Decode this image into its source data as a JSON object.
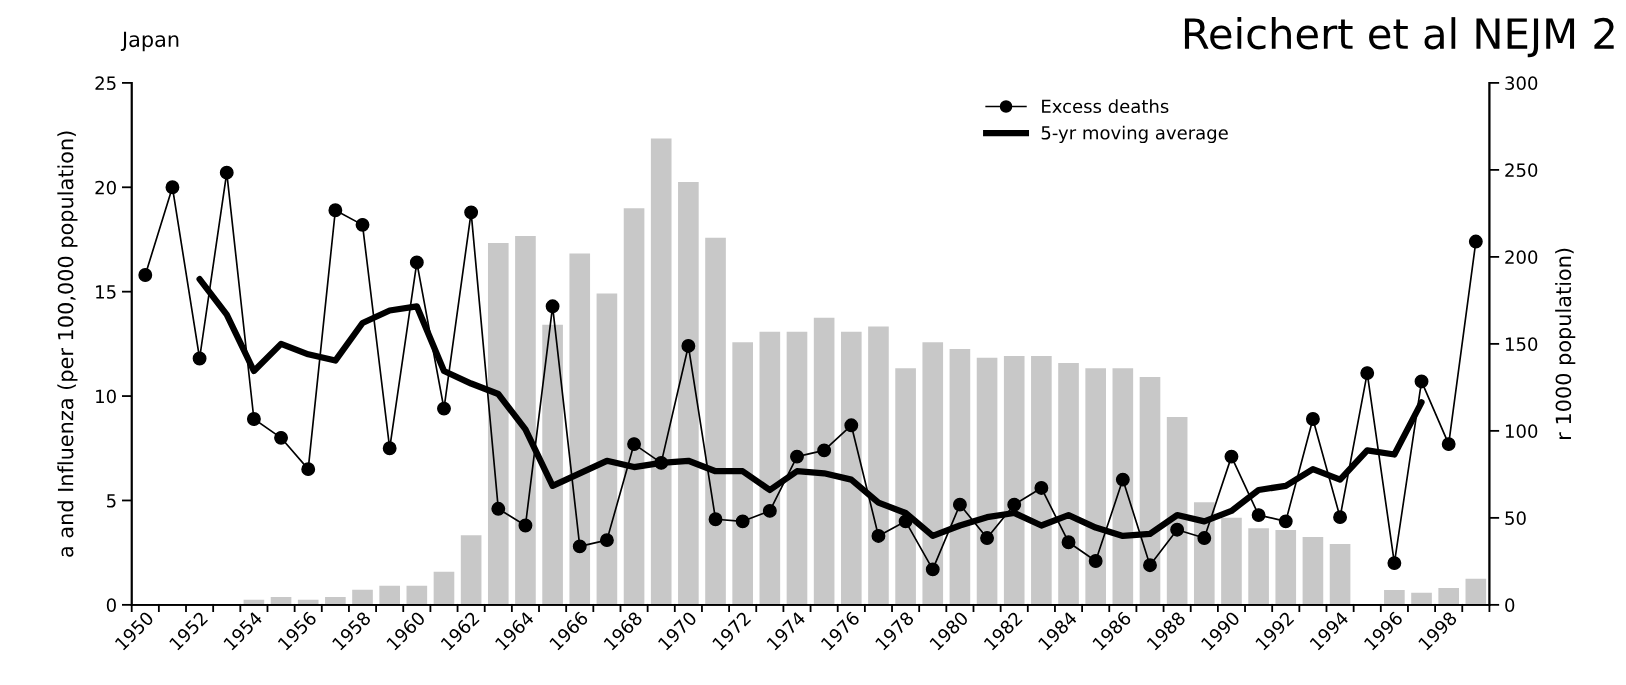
{
  "chart_data": {
    "type": "line",
    "title": "Reichert et al NEJM 2",
    "subtitle": "Japan",
    "ylabel": "a and Influenza (per 100,000 population)",
    "y2label": "r 1000 population)",
    "categories": [
      "1950",
      null,
      "1952",
      null,
      "1954",
      null,
      "1956",
      null,
      "1958",
      null,
      "1960",
      null,
      "1962",
      null,
      "1964",
      null,
      "1966",
      null,
      "1968",
      null,
      "1970",
      null,
      "1972",
      null,
      "1974",
      null,
      "1976",
      null,
      "1978",
      null,
      "1980",
      null,
      "1982",
      null,
      "1984",
      null,
      "1986",
      null,
      "1988",
      null,
      "1990",
      null,
      "1992",
      null,
      "1994",
      null,
      "1996",
      null,
      "1998",
      null
    ],
    "series": [
      {
        "type": "bar",
        "axis": "y2",
        "color": "#c8c8c8",
        "values": [
          0,
          0,
          0,
          0,
          3,
          4.5,
          3,
          4.5,
          8.7,
          11,
          11,
          19,
          40,
          208,
          212,
          161,
          202,
          179,
          228,
          268,
          243,
          211,
          151,
          157,
          157,
          165,
          157,
          160,
          136,
          151,
          147,
          142,
          143,
          143,
          139,
          136,
          136,
          131,
          108,
          59,
          50,
          44,
          43,
          39,
          35,
          0,
          8.5,
          7,
          9.7,
          15
        ]
      },
      {
        "name": "Excess deaths",
        "color": "#000000",
        "marker": "circle",
        "values": [
          15.8,
          20.0,
          11.8,
          20.7,
          8.9,
          8.0,
          6.5,
          18.9,
          18.2,
          7.5,
          16.4,
          9.4,
          18.8,
          4.6,
          3.8,
          14.3,
          2.8,
          3.1,
          7.7,
          6.8,
          12.4,
          4.1,
          4.0,
          4.5,
          7.1,
          7.4,
          8.6,
          3.3,
          4.0,
          1.7,
          4.8,
          3.2,
          4.8,
          5.6,
          3.0,
          2.1,
          6.0,
          1.9,
          3.6,
          3.2,
          7.1,
          4.3,
          4.0,
          8.9,
          4.2,
          11.1,
          2.0,
          10.7,
          7.7,
          17.4
        ]
      },
      {
        "name": "5-yr moving average",
        "color": "#000000",
        "marker": "none",
        "values": [
          null,
          null,
          15.6,
          13.9,
          11.2,
          12.5,
          12.0,
          11.7,
          13.5,
          14.1,
          14.3,
          11.2,
          10.6,
          10.1,
          8.4,
          5.7,
          6.3,
          6.9,
          6.6,
          6.8,
          6.9,
          6.4,
          6.4,
          5.5,
          6.4,
          6.3,
          6.0,
          4.9,
          4.4,
          3.3,
          3.8,
          4.2,
          4.4,
          3.8,
          4.3,
          3.7,
          3.3,
          3.4,
          4.3,
          4.0,
          4.5,
          5.5,
          5.7,
          6.5,
          6.0,
          7.4,
          7.2,
          9.7,
          null,
          null
        ]
      }
    ],
    "ylim": [
      0,
      25
    ],
    "yticks": [
      0,
      5,
      10,
      15,
      20,
      25
    ],
    "y2lim": [
      0,
      300
    ],
    "y2ticks": [
      0,
      50,
      100,
      150,
      200,
      250,
      300
    ],
    "legend": "top right",
    "grid": false
  }
}
